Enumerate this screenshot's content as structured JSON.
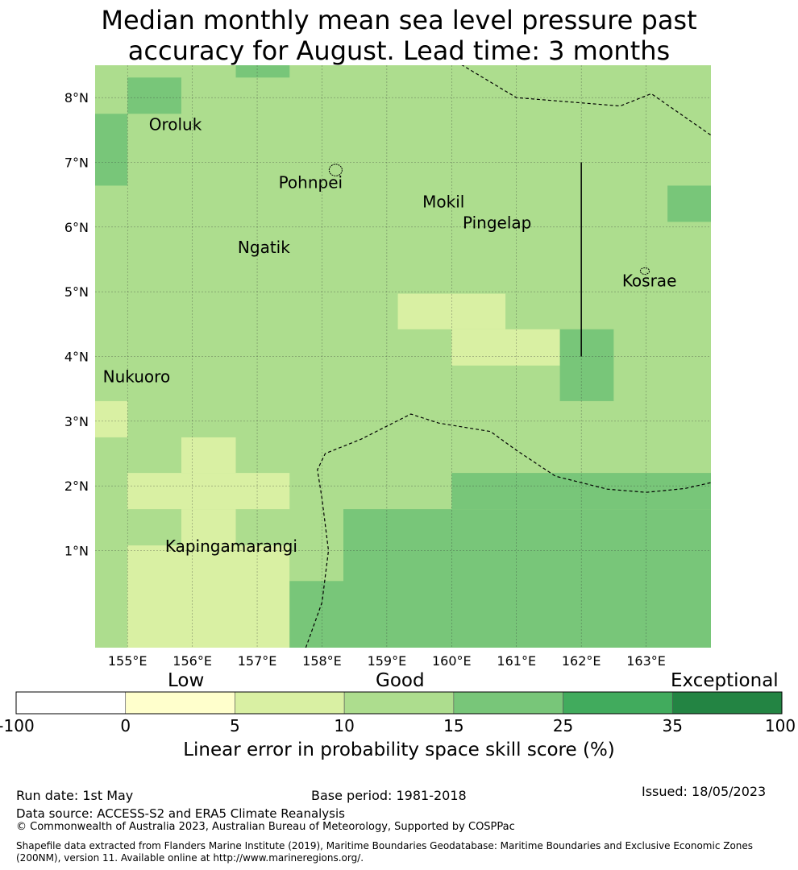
{
  "title": {
    "line1": "Median monthly mean sea level pressure past",
    "line2": "accuracy for August. Lead time: 3 months"
  },
  "map": {
    "lon_range": [
      154.5,
      164.0
    ],
    "lat_range": [
      -0.5,
      8.5
    ],
    "lat_ticks": [
      {
        "value": 1,
        "label": "1°N"
      },
      {
        "value": 2,
        "label": "2°N"
      },
      {
        "value": 3,
        "label": "3°N"
      },
      {
        "value": 4,
        "label": "4°N"
      },
      {
        "value": 5,
        "label": "5°N"
      },
      {
        "value": 6,
        "label": "6°N"
      },
      {
        "value": 7,
        "label": "7°N"
      },
      {
        "value": 8,
        "label": "8°N"
      }
    ],
    "lon_ticks": [
      {
        "value": 155,
        "label": "155°E"
      },
      {
        "value": 156,
        "label": "156°E"
      },
      {
        "value": 157,
        "label": "157°E"
      },
      {
        "value": 158,
        "label": "158°E"
      },
      {
        "value": 159,
        "label": "159°E"
      },
      {
        "value": 160,
        "label": "160°E"
      },
      {
        "value": 161,
        "label": "161°E"
      },
      {
        "value": 162,
        "label": "162°E"
      },
      {
        "value": 163,
        "label": "163°E"
      }
    ],
    "places": [
      {
        "name": "Oroluk",
        "lon": 155.33,
        "lat": 7.5
      },
      {
        "name": "Pohnpei",
        "lon": 157.33,
        "lat": 6.6
      },
      {
        "name": "Mokil",
        "lon": 159.55,
        "lat": 6.3
      },
      {
        "name": "Pingelap",
        "lon": 160.17,
        "lat": 5.98
      },
      {
        "name": "Ngatik",
        "lon": 156.7,
        "lat": 5.6
      },
      {
        "name": "Kosrae",
        "lon": 162.63,
        "lat": 5.08
      },
      {
        "name": "Nukuoro",
        "lon": 154.62,
        "lat": 3.6
      },
      {
        "name": "Kapingamarangi",
        "lon": 155.58,
        "lat": 0.98
      }
    ],
    "category_colors": {
      "c2": "#d9f0a3",
      "c3": "#addd8e",
      "c4": "#78c679"
    },
    "skill_cells": [
      {
        "lon0": 154.5,
        "lon1": 164.0,
        "lat0": -0.5,
        "lat1": 8.5,
        "cat": "c3"
      },
      {
        "lon0": 155.0,
        "lon1": 155.83,
        "lat0": 7.75,
        "lat1": 8.31,
        "cat": "c4"
      },
      {
        "lon0": 156.67,
        "lon1": 157.5,
        "lat0": 8.31,
        "lat1": 8.5,
        "cat": "c4"
      },
      {
        "lon0": 154.5,
        "lon1": 155.0,
        "lat0": 6.64,
        "lat1": 7.75,
        "cat": "c4"
      },
      {
        "lon0": 163.33,
        "lon1": 164.0,
        "lat0": 6.08,
        "lat1": 6.64,
        "cat": "c4"
      },
      {
        "lon0": 159.17,
        "lon1": 160.83,
        "lat0": 4.42,
        "lat1": 4.97,
        "cat": "c2"
      },
      {
        "lon0": 160.0,
        "lon1": 161.67,
        "lat0": 3.86,
        "lat1": 4.42,
        "cat": "c2"
      },
      {
        "lon0": 161.67,
        "lon1": 162.5,
        "lat0": 3.31,
        "lat1": 4.42,
        "cat": "c4"
      },
      {
        "lon0": 154.5,
        "lon1": 155.0,
        "lat0": 2.75,
        "lat1": 3.31,
        "cat": "c2"
      },
      {
        "lon0": 155.83,
        "lon1": 156.67,
        "lat0": 2.2,
        "lat1": 2.75,
        "cat": "c2"
      },
      {
        "lon0": 155.0,
        "lon1": 157.5,
        "lat0": 1.64,
        "lat1": 2.2,
        "cat": "c2"
      },
      {
        "lon0": 155.83,
        "lon1": 156.67,
        "lat0": 1.08,
        "lat1": 1.64,
        "cat": "c2"
      },
      {
        "lon0": 155.0,
        "lon1": 157.5,
        "lat0": -0.5,
        "lat1": 1.08,
        "cat": "c2"
      },
      {
        "lon0": 157.5,
        "lon1": 158.33,
        "lat0": 0.53,
        "lat1": 1.08,
        "cat": "c3"
      },
      {
        "lon0": 160.0,
        "lon1": 164.0,
        "lat0": 1.64,
        "lat1": 2.2,
        "cat": "c4"
      },
      {
        "lon0": 158.33,
        "lon1": 164.0,
        "lat0": -0.5,
        "lat1": 1.64,
        "cat": "c4"
      },
      {
        "lon0": 157.5,
        "lon1": 158.33,
        "lat0": -0.5,
        "lat1": 0.53,
        "cat": "c4"
      }
    ],
    "boundaries": [
      [
        [
          160.0,
          8.6
        ],
        [
          161.0,
          8.0
        ],
        [
          162.6,
          7.87
        ],
        [
          163.08,
          8.06
        ],
        [
          164.0,
          7.42
        ]
      ],
      [
        [
          157.75,
          -0.5
        ],
        [
          158.0,
          0.2
        ],
        [
          158.1,
          1.0
        ],
        [
          158.0,
          1.8
        ],
        [
          157.93,
          2.25
        ],
        [
          158.05,
          2.5
        ],
        [
          158.6,
          2.72
        ],
        [
          159.37,
          3.11
        ],
        [
          159.8,
          2.97
        ],
        [
          160.6,
          2.84
        ],
        [
          161.0,
          2.55
        ],
        [
          161.6,
          2.15
        ],
        [
          162.4,
          1.95
        ],
        [
          163.0,
          1.9
        ],
        [
          163.6,
          1.96
        ],
        [
          164.0,
          2.05
        ]
      ]
    ],
    "solid_line": [
      [
        162.0,
        7.0
      ],
      [
        162.0,
        4.0
      ]
    ],
    "islands": [
      {
        "lon": 158.21,
        "lat": 6.88,
        "rx": 0.1,
        "ry": 0.09
      },
      {
        "lon": 162.98,
        "lat": 5.32,
        "rx": 0.07,
        "ry": 0.05
      }
    ]
  },
  "colorbar": {
    "headers": {
      "low": "Low",
      "good": "Good",
      "exceptional": "Exceptional"
    },
    "segments": [
      {
        "color": "#ffffff",
        "from": "-100",
        "to": "0"
      },
      {
        "color": "#ffffcc",
        "from": "0",
        "to": "5"
      },
      {
        "color": "#d9f0a3",
        "from": "5",
        "to": "10"
      },
      {
        "color": "#addd8e",
        "from": "10",
        "to": "15"
      },
      {
        "color": "#78c679",
        "from": "15",
        "to": "25"
      },
      {
        "color": "#41ab5d",
        "from": "25",
        "to": "35"
      },
      {
        "color": "#238443",
        "from": "35",
        "to": "100"
      }
    ],
    "ticks": [
      "-100",
      "0",
      "5",
      "10",
      "15",
      "25",
      "35",
      "100"
    ],
    "label": "Linear error in probability space skill score (%)"
  },
  "footer": {
    "run_date": "Run date: 1st May",
    "base_period": "Base period: 1981-2018",
    "issued": "Issued: 18/05/2023",
    "data_source": "Data source: ACCESS-S2 and ERA5 Climate Reanalysis",
    "copyright": "© Commonwealth of Australia 2023, Australian Bureau of Meteorology, Supported by COSPPac",
    "shapefile": "Shapefile data extracted from Flanders Marine Institute (2019), Maritime Boundaries Geodatabase: Maritime Boundaries and Exclusive Economic Zones (200NM), version 11. Available online at http://www.marineregions.org/."
  }
}
